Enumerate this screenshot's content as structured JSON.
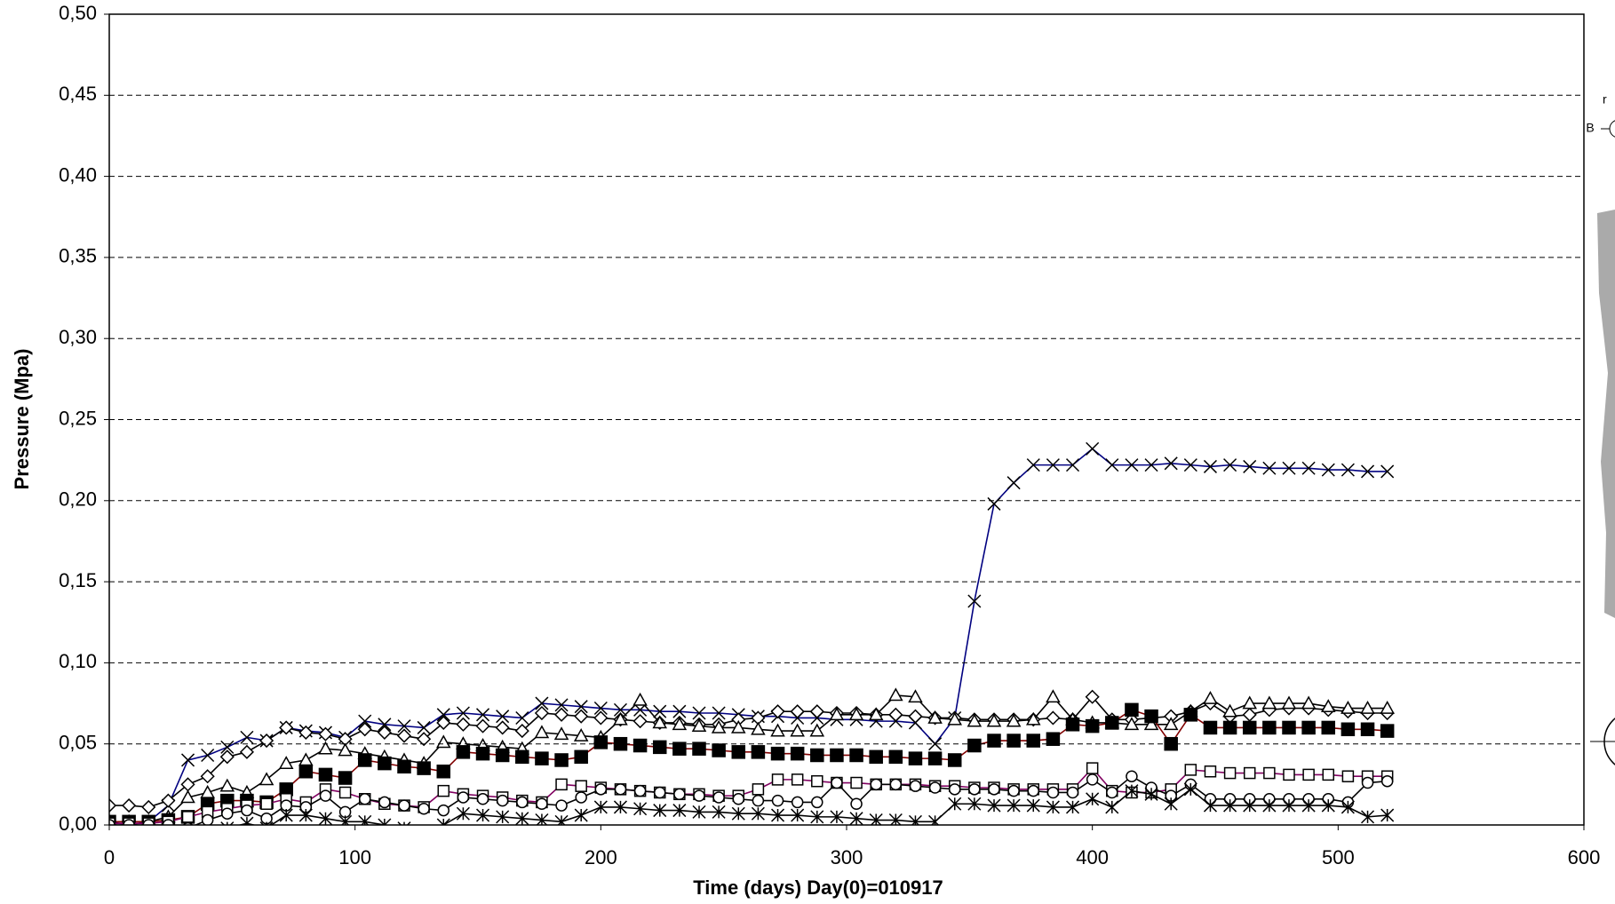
{
  "chart_data": {
    "type": "line",
    "x_label": "Time  (days)  Day(0)=010917",
    "y_label": "Pressure (Mpa)",
    "annotations": [
      "r",
      "B"
    ],
    "xlim": [
      0,
      600
    ],
    "xticks": [
      0,
      100,
      200,
      300,
      400,
      500,
      600
    ],
    "ylim": [
      0,
      0.5
    ],
    "yticks": [
      {
        "value": 0,
        "label": "0,00"
      },
      {
        "value": 0.05,
        "label": "0,05"
      },
      {
        "value": 0.1,
        "label": "0,10"
      },
      {
        "value": 0.15,
        "label": "0,15"
      },
      {
        "value": 0.2,
        "label": "0,20"
      },
      {
        "value": 0.25,
        "label": "0,25"
      },
      {
        "value": 0.3,
        "label": "0,30"
      },
      {
        "value": 0.35,
        "label": "0,35"
      },
      {
        "value": 0.4,
        "label": "0,40"
      },
      {
        "value": 0.45,
        "label": "0,45"
      },
      {
        "value": 0.5,
        "label": "0,50"
      }
    ],
    "grid": true,
    "x": [
      0,
      8,
      16,
      24,
      32,
      40,
      48,
      56,
      64,
      72,
      80,
      88,
      96,
      104,
      112,
      120,
      128,
      136,
      144,
      152,
      160,
      168,
      176,
      184,
      192,
      200,
      208,
      216,
      224,
      232,
      240,
      248,
      256,
      264,
      272,
      280,
      288,
      296,
      304,
      312,
      320,
      328,
      336,
      344,
      352,
      360,
      368,
      376,
      384,
      392,
      400,
      408,
      416,
      424,
      432,
      440,
      448,
      456,
      464,
      472,
      480,
      488,
      496,
      504,
      512,
      520
    ],
    "series": [
      {
        "color": "#000080",
        "marker": "x",
        "values": [
          0.002,
          0,
          0.002,
          0.012,
          0.04,
          0.043,
          0.048,
          0.054,
          0.052,
          0.06,
          0.058,
          0.057,
          0.054,
          0.064,
          0.062,
          0.061,
          0.06,
          0.068,
          0.069,
          0.068,
          0.067,
          0.066,
          0.075,
          0.074,
          0.073,
          0.072,
          0.071,
          0.071,
          0.07,
          0.07,
          0.069,
          0.069,
          0.068,
          0.067,
          0.067,
          0.066,
          0.066,
          0.065,
          0.065,
          0.064,
          0.064,
          0.063,
          0.05,
          0.066,
          0.138,
          0.198,
          0.211,
          0.222,
          0.222,
          0.222,
          0.232,
          0.222,
          0.222,
          0.222,
          0.223,
          0.222,
          0.221,
          0.222,
          0.221,
          0.22,
          0.22,
          0.22,
          0.219,
          0.219,
          0.218,
          0.218
        ]
      },
      {
        "color": "#000000",
        "marker": "diamond",
        "values": [
          0.012,
          0.012,
          0.011,
          0.015,
          0.025,
          0.03,
          0.042,
          0.045,
          0.052,
          0.06,
          0.057,
          0.056,
          0.053,
          0.059,
          0.057,
          0.055,
          0.053,
          0.063,
          0.062,
          0.061,
          0.06,
          0.058,
          0.069,
          0.068,
          0.067,
          0.066,
          0.065,
          0.064,
          0.063,
          0.063,
          0.062,
          0.062,
          0.065,
          0.066,
          0.07,
          0.07,
          0.07,
          0.069,
          0.069,
          0.068,
          0.068,
          0.067,
          0.066,
          0.066,
          0.065,
          0.065,
          0.065,
          0.065,
          0.066,
          0.065,
          0.079,
          0.065,
          0.065,
          0.066,
          0.067,
          0.07,
          0.075,
          0.067,
          0.068,
          0.071,
          0.072,
          0.072,
          0.071,
          0.07,
          0.069,
          0.069
        ]
      },
      {
        "color": "#000000",
        "marker": "triangle",
        "values": [
          0.002,
          0.002,
          0.002,
          0.005,
          0.017,
          0.02,
          0.024,
          0.02,
          0.028,
          0.038,
          0.04,
          0.047,
          0.046,
          0.044,
          0.042,
          0.04,
          0.038,
          0.051,
          0.05,
          0.049,
          0.048,
          0.047,
          0.057,
          0.056,
          0.055,
          0.054,
          0.065,
          0.077,
          0.063,
          0.062,
          0.061,
          0.06,
          0.06,
          0.059,
          0.058,
          0.058,
          0.058,
          0.068,
          0.068,
          0.068,
          0.08,
          0.079,
          0.066,
          0.065,
          0.064,
          0.064,
          0.064,
          0.065,
          0.079,
          0.065,
          0.063,
          0.063,
          0.062,
          0.062,
          0.062,
          0.07,
          0.078,
          0.07,
          0.075,
          0.075,
          0.075,
          0.075,
          0.073,
          0.072,
          0.072,
          0.072
        ]
      },
      {
        "color": "#800000",
        "marker": "filled-square",
        "values": [
          0.002,
          0.002,
          0.002,
          0.003,
          0.005,
          0.013,
          0.015,
          0.015,
          0.014,
          0.022,
          0.033,
          0.031,
          0.029,
          0.04,
          0.038,
          0.036,
          0.035,
          0.033,
          0.045,
          0.044,
          0.043,
          0.042,
          0.041,
          0.04,
          0.042,
          0.051,
          0.05,
          0.049,
          0.048,
          0.047,
          0.047,
          0.046,
          0.045,
          0.045,
          0.044,
          0.044,
          0.043,
          0.043,
          0.043,
          0.042,
          0.042,
          0.041,
          0.041,
          0.04,
          0.049,
          0.052,
          0.052,
          0.052,
          0.053,
          0.062,
          0.061,
          0.063,
          0.071,
          0.067,
          0.05,
          0.068,
          0.06,
          0.06,
          0.06,
          0.06,
          0.06,
          0.06,
          0.06,
          0.059,
          0.059,
          0.058
        ]
      },
      {
        "color": "#800060",
        "marker": "square",
        "values": [
          0.001,
          0.001,
          0.001,
          0.002,
          0.005,
          0.008,
          0.01,
          0.012,
          0.013,
          0.016,
          0.014,
          0.022,
          0.02,
          0.016,
          0.013,
          0.012,
          0.011,
          0.021,
          0.019,
          0.018,
          0.017,
          0.015,
          0.014,
          0.025,
          0.024,
          0.023,
          0.022,
          0.021,
          0.02,
          0.019,
          0.019,
          0.018,
          0.018,
          0.022,
          0.028,
          0.028,
          0.027,
          0.026,
          0.026,
          0.025,
          0.025,
          0.025,
          0.024,
          0.024,
          0.023,
          0.023,
          0.022,
          0.022,
          0.022,
          0.022,
          0.035,
          0.021,
          0.02,
          0.02,
          0.022,
          0.034,
          0.033,
          0.032,
          0.032,
          0.032,
          0.031,
          0.031,
          0.031,
          0.03,
          0.03,
          0.03
        ]
      },
      {
        "color": "#000000",
        "marker": "circle",
        "values": [
          0,
          0,
          0,
          0,
          -0.002,
          0.003,
          0.007,
          0.009,
          0.004,
          0.012,
          0.011,
          0.018,
          0.008,
          0.016,
          0.014,
          0.012,
          0.01,
          0.009,
          0.017,
          0.016,
          0.015,
          0.014,
          0.013,
          0.012,
          0.017,
          0.022,
          0.022,
          0.021,
          0.02,
          0.019,
          0.018,
          0.017,
          0.016,
          0.015,
          0.015,
          0.014,
          0.014,
          0.026,
          0.013,
          0.025,
          0.025,
          0.024,
          0.023,
          0.022,
          0.022,
          0.022,
          0.021,
          0.021,
          0.02,
          0.02,
          0.028,
          0.02,
          0.03,
          0.023,
          0.018,
          0.025,
          0.016,
          0.016,
          0.016,
          0.016,
          0.016,
          0.016,
          0.016,
          0.014,
          0.026,
          0.027
        ]
      },
      {
        "color": "#000000",
        "marker": "asterisk",
        "values": [
          -0.01,
          -0.01,
          -0.01,
          -0.01,
          -0.008,
          -0.005,
          -0.002,
          0.001,
          -0.002,
          0.006,
          0.006,
          0.004,
          0.002,
          0.002,
          0,
          -0.002,
          -0.004,
          0,
          0.007,
          0.006,
          0.005,
          0.004,
          0.003,
          0.002,
          0.006,
          0.011,
          0.011,
          0.01,
          0.009,
          0.009,
          0.008,
          0.008,
          0.007,
          0.007,
          0.006,
          0.006,
          0.005,
          0.005,
          0.004,
          0.003,
          0.003,
          0.002,
          0.002,
          0.013,
          0.013,
          0.012,
          0.012,
          0.012,
          0.011,
          0.011,
          0.016,
          0.011,
          0.021,
          0.019,
          0.013,
          0.022,
          0.012,
          0.012,
          0.012,
          0.012,
          0.012,
          0.012,
          0.012,
          0.011,
          0.005,
          0.006
        ]
      }
    ]
  }
}
